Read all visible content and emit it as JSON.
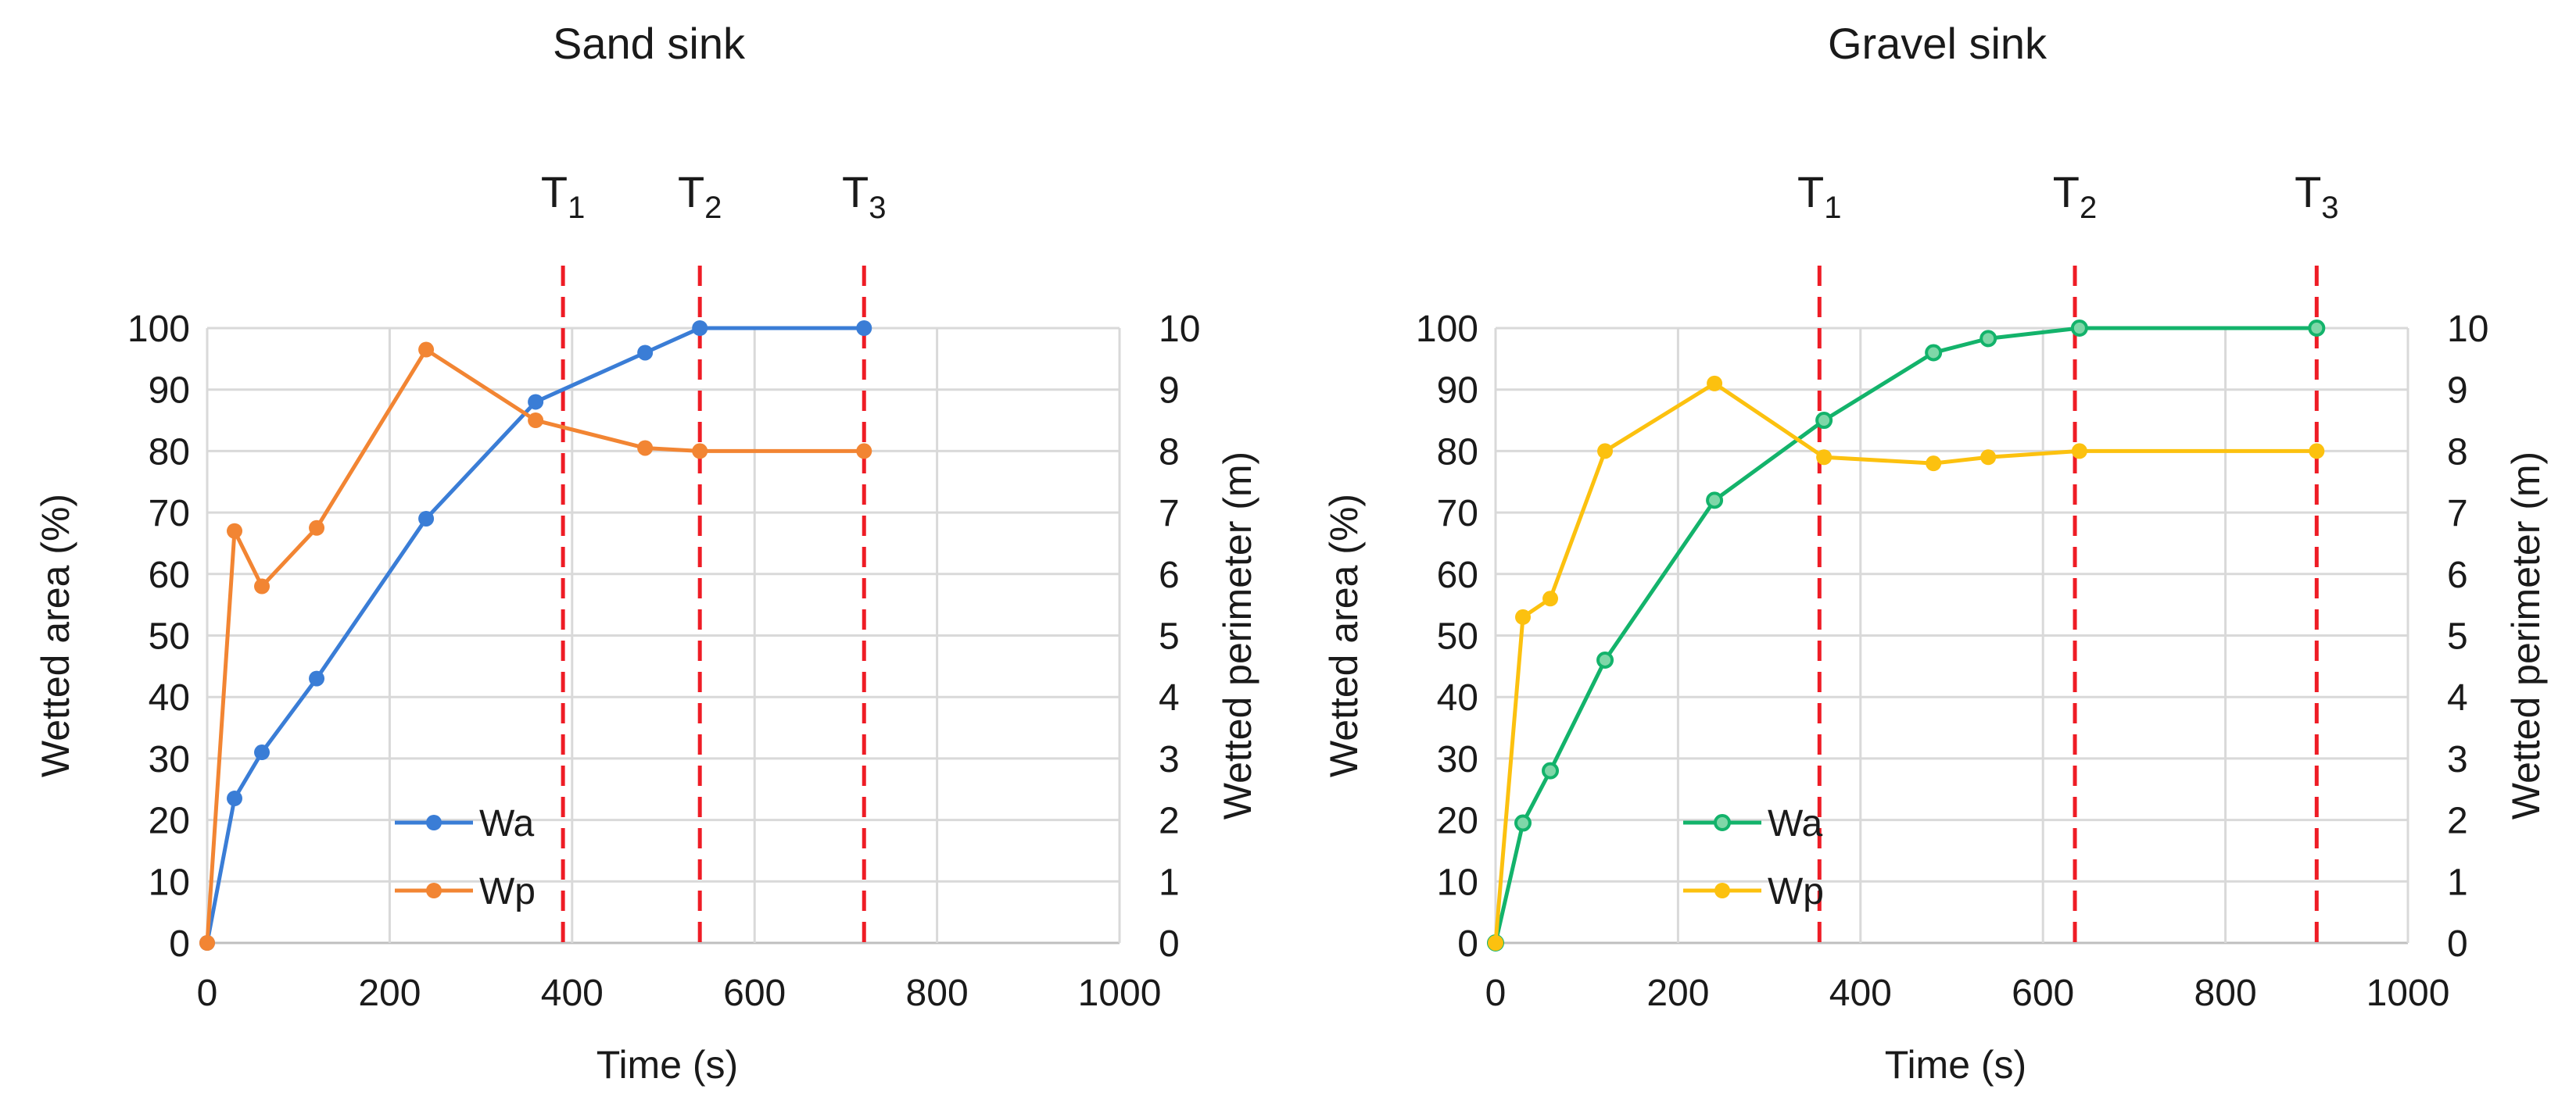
{
  "chart_data": [
    {
      "type": "line",
      "title": "Sand sink",
      "xlabel": "Time (s)",
      "ylabel": "Wetted area (%)",
      "y2label": "Wetted perimeter (m)",
      "xlim": [
        0,
        1000
      ],
      "ylim": [
        0,
        100
      ],
      "y2lim": [
        0,
        10
      ],
      "xticks": [
        "0",
        "200",
        "400",
        "600",
        "800",
        "1000"
      ],
      "yticks": [
        "0",
        "10",
        "20",
        "30",
        "40",
        "50",
        "60",
        "70",
        "80",
        "90",
        "100"
      ],
      "y2ticks": [
        "0",
        "1",
        "2",
        "3",
        "4",
        "5",
        "6",
        "7",
        "8",
        "9",
        "10"
      ],
      "grid": true,
      "legend": "bottom-left",
      "series": [
        {
          "name": "Wa",
          "axis": "left",
          "color": "#3a7dd6",
          "marker": "filled",
          "x": [
            0,
            30,
            60,
            120,
            240,
            360,
            480,
            540,
            720
          ],
          "y": [
            0,
            23.5,
            31,
            43,
            69,
            88,
            96,
            100,
            100
          ]
        },
        {
          "name": "Wp",
          "axis": "right",
          "color": "#f28533",
          "marker": "filled",
          "x": [
            0,
            30,
            60,
            120,
            240,
            360,
            480,
            540,
            720
          ],
          "y": [
            0,
            6.7,
            5.8,
            6.75,
            9.65,
            8.5,
            8.05,
            8.0,
            8.0
          ]
        }
      ],
      "markers": [
        {
          "x": 390,
          "label": "T",
          "sub": "1"
        },
        {
          "x": 540,
          "label": "T",
          "sub": "2"
        },
        {
          "x": 720,
          "label": "T",
          "sub": "3"
        }
      ],
      "marker_color": "#ee1c25"
    },
    {
      "type": "line",
      "title": "Gravel sink",
      "xlabel": "Time (s)",
      "ylabel": "Wetted area (%)",
      "y2label": "Wetted perimeter (m)",
      "xlim": [
        0,
        1000
      ],
      "ylim": [
        0,
        100
      ],
      "y2lim": [
        0,
        10
      ],
      "xticks": [
        "0",
        "200",
        "400",
        "600",
        "800",
        "1000"
      ],
      "yticks": [
        "0",
        "10",
        "20",
        "30",
        "40",
        "50",
        "60",
        "70",
        "80",
        "90",
        "100"
      ],
      "y2ticks": [
        "0",
        "1",
        "2",
        "3",
        "4",
        "5",
        "6",
        "7",
        "8",
        "9",
        "10"
      ],
      "grid": true,
      "legend": "bottom-left",
      "series": [
        {
          "name": "Wa",
          "axis": "left",
          "color": "#13b36b",
          "marker": "hollow",
          "x": [
            0,
            30,
            60,
            120,
            240,
            360,
            480,
            540,
            640,
            900
          ],
          "y": [
            0,
            19.5,
            28,
            46,
            72,
            85,
            96,
            98.3,
            100,
            100
          ]
        },
        {
          "name": "Wp",
          "axis": "right",
          "color": "#fcc10f",
          "marker": "filled",
          "x": [
            0,
            30,
            60,
            120,
            240,
            360,
            480,
            540,
            640,
            900
          ],
          "y": [
            0,
            5.3,
            5.6,
            8.0,
            9.1,
            7.9,
            7.8,
            7.9,
            8.0,
            8.0
          ]
        }
      ],
      "markers": [
        {
          "x": 355,
          "label": "T",
          "sub": "1"
        },
        {
          "x": 635,
          "label": "T",
          "sub": "2"
        },
        {
          "x": 900,
          "label": "T",
          "sub": "3"
        }
      ],
      "marker_color": "#ee1c25"
    }
  ]
}
